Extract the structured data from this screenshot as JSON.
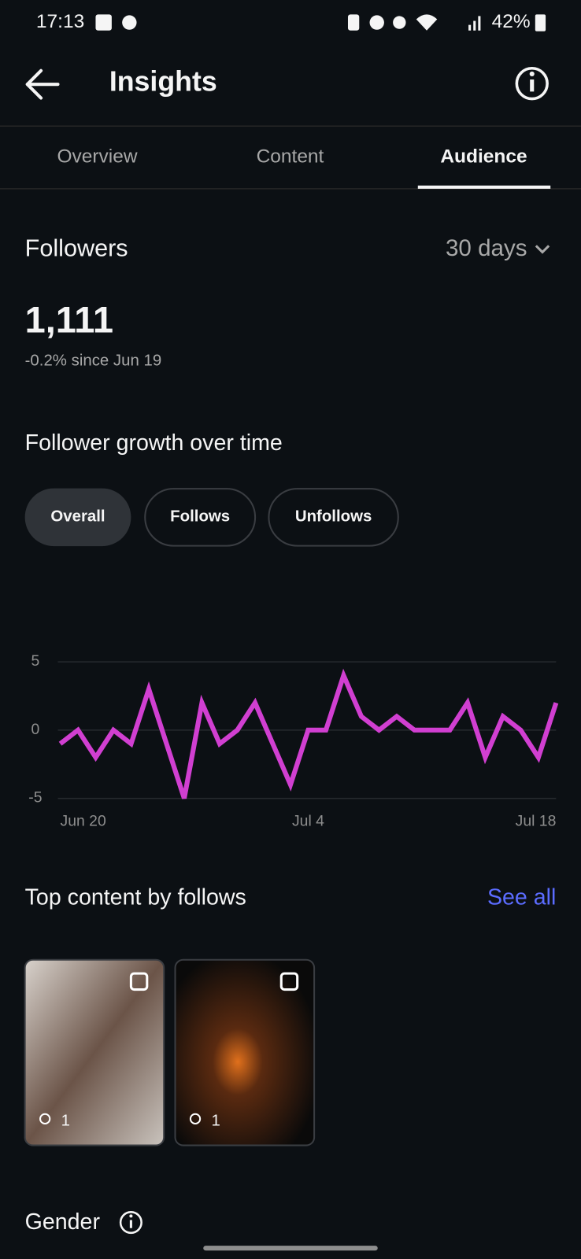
{
  "status_bar": {
    "time": "17:13",
    "battery": "42%"
  },
  "header": {
    "title": "Insights"
  },
  "tabs": [
    "Overview",
    "Content",
    "Audience"
  ],
  "followers": {
    "title": "Followers",
    "period": "30 days",
    "count": "1,111",
    "change": "-0.2% since Jun 19"
  },
  "growth": {
    "title": "Follower growth over time",
    "filters": [
      "Overall",
      "Follows",
      "Unfollows"
    ]
  },
  "chart_data": {
    "type": "line",
    "categories": [
      "Jun 20",
      null,
      null,
      null,
      null,
      null,
      null,
      null,
      null,
      null,
      null,
      null,
      null,
      null,
      "Jul 4",
      null,
      null,
      null,
      null,
      null,
      null,
      null,
      null,
      null,
      null,
      null,
      null,
      null,
      "Jul 18"
    ],
    "values": [
      -1,
      0,
      -2,
      0,
      -1,
      3,
      -1,
      -5,
      2,
      -1,
      0,
      2,
      -1,
      -4,
      0,
      0,
      4,
      1,
      0,
      1,
      0,
      0,
      0,
      2,
      -2,
      1,
      0,
      -2,
      2
    ],
    "color": "#d13fd1",
    "ylim": [
      -5,
      5
    ],
    "yticks": [
      -5,
      0,
      5
    ],
    "grid": true
  },
  "top_content": {
    "title": "Top content by follows",
    "link": "See all",
    "items": [
      {
        "follows": "1"
      },
      {
        "follows": "1"
      }
    ]
  },
  "gender": {
    "title": "Gender"
  }
}
